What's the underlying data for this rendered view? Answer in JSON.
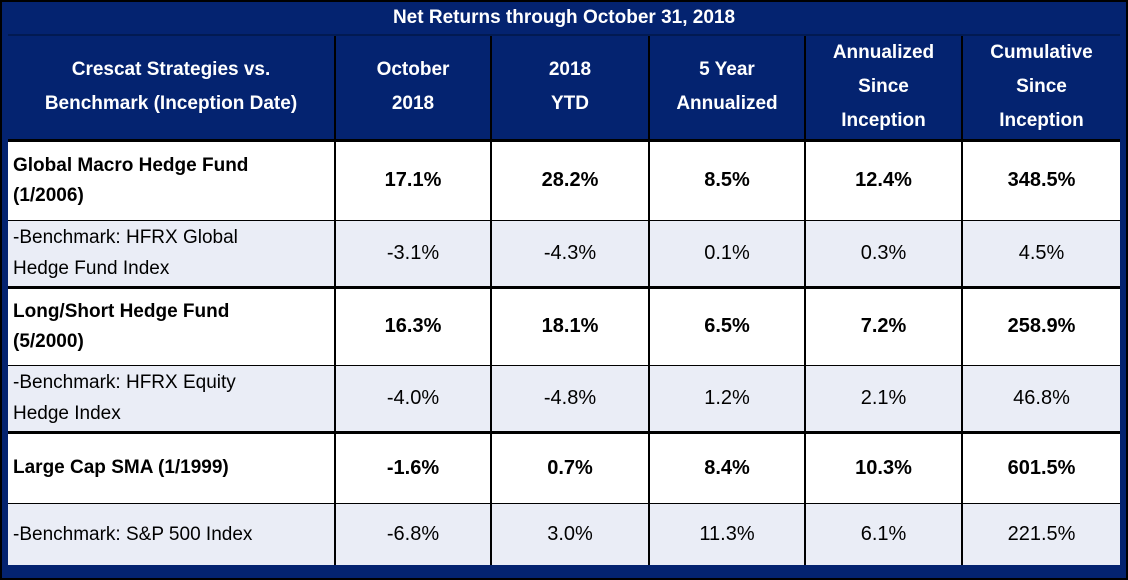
{
  "title": "Net Returns through October 31, 2018",
  "columns": [
    {
      "label": "Crescat Strategies vs.\nBenchmark (Inception Date)"
    },
    {
      "label": "October\n2018"
    },
    {
      "label": "2018\nYTD"
    },
    {
      "label": "5 Year\nAnnualized"
    },
    {
      "label": "Annualized\nSince\nInception"
    },
    {
      "label": "Cumulative\nSince\nInception"
    }
  ],
  "rows": [
    {
      "label": "Global Macro Hedge Fund\n(1/2006)",
      "type": "fund",
      "values": [
        "17.1%",
        "28.2%",
        "8.5%",
        "12.4%",
        "348.5%"
      ]
    },
    {
      "label": "-Benchmark: HFRX Global\nHedge Fund Index",
      "type": "benchmark",
      "values": [
        "-3.1%",
        "-4.3%",
        "0.1%",
        "0.3%",
        "4.5%"
      ]
    },
    {
      "label": "Long/Short Hedge Fund\n(5/2000)",
      "type": "fund",
      "values": [
        "16.3%",
        "18.1%",
        "6.5%",
        "7.2%",
        "258.9%"
      ]
    },
    {
      "label": "-Benchmark: HFRX Equity\nHedge Index",
      "type": "benchmark",
      "values": [
        "-4.0%",
        "-4.8%",
        "1.2%",
        "2.1%",
        "46.8%"
      ]
    },
    {
      "label": "Large Cap SMA (1/1999)",
      "type": "fund",
      "values": [
        "-1.6%",
        "0.7%",
        "8.4%",
        "10.3%",
        "601.5%"
      ]
    },
    {
      "label": "-Benchmark: S&P 500 Index",
      "type": "benchmark",
      "values": [
        "-6.8%",
        "3.0%",
        "11.3%",
        "6.1%",
        "221.5%"
      ]
    }
  ],
  "colors": {
    "frame_navy": "#042370",
    "title_divider": "#021a52",
    "grid_line": "#000000",
    "benchmark_row_bg": "#EAEDF6",
    "fund_row_bg": "#FFFFFF",
    "header_text": "#FFFFFF",
    "body_text": "#000000"
  }
}
